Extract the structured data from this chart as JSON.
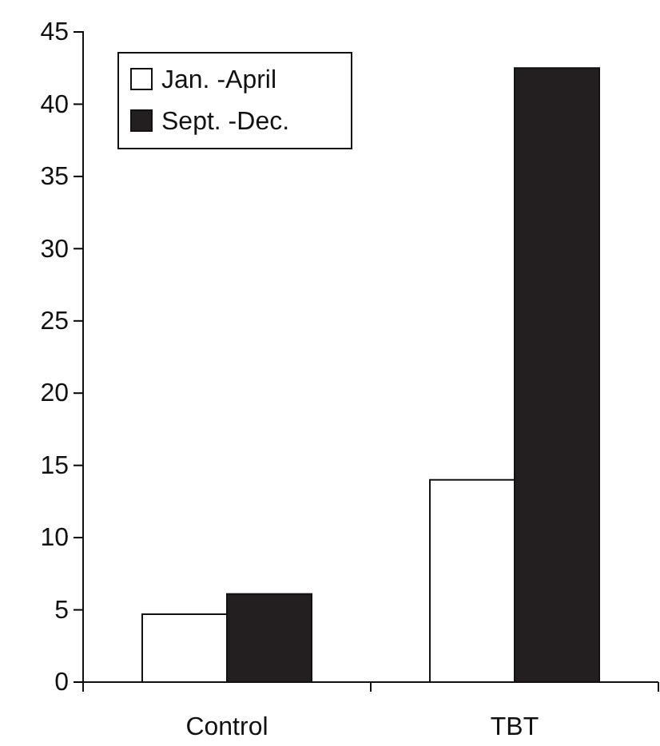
{
  "chart_data": {
    "type": "bar",
    "categories": [
      "Control",
      "TBT"
    ],
    "series": [
      {
        "name": "Jan. -April",
        "color": "#ffffff",
        "values": [
          4.7,
          14.0
        ]
      },
      {
        "name": "Sept. -Dec.",
        "color": "#231f20",
        "values": [
          6.1,
          42.5
        ]
      }
    ],
    "ylim": [
      0,
      45
    ],
    "yticks": [
      0,
      5,
      10,
      15,
      20,
      25,
      30,
      35,
      40,
      45
    ],
    "grid": false,
    "legend": "top left"
  }
}
